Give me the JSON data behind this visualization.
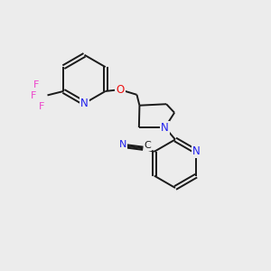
{
  "background_color": "#ececec",
  "bond_color": "#1a1a1a",
  "N_color": "#2020ee",
  "O_color": "#ee1010",
  "F_color": "#ee44cc",
  "C_color": "#1a1a1a",
  "figsize": [
    3.0,
    3.0
  ],
  "dpi": 100,
  "xlim": [
    0,
    10
  ],
  "ylim": [
    0,
    10
  ]
}
